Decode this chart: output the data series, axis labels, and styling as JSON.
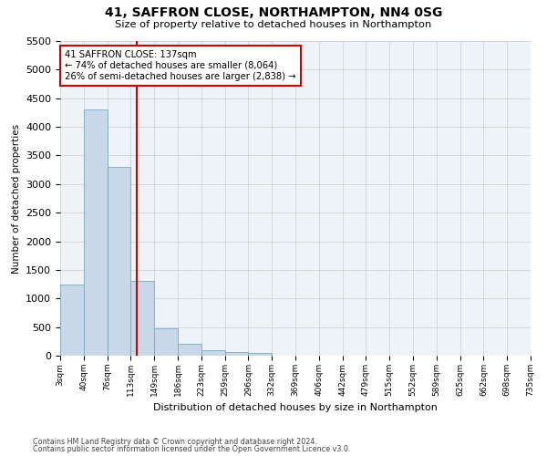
{
  "title": "41, SAFFRON CLOSE, NORTHAMPTON, NN4 0SG",
  "subtitle": "Size of property relative to detached houses in Northampton",
  "xlabel": "Distribution of detached houses by size in Northampton",
  "ylabel": "Number of detached properties",
  "footnote1": "Contains HM Land Registry data © Crown copyright and database right 2024.",
  "footnote2": "Contains public sector information licensed under the Open Government Licence v3.0.",
  "bar_color": "#c8d8e8",
  "bar_edge_color": "#7aaabf",
  "grid_color": "#cccccc",
  "bg_color": "#eef3f8",
  "annotation_box_color": "#cc0000",
  "vline_color": "#cc0000",
  "property_size_label": "137sqm",
  "property_bin_index": 3.27,
  "annotation_line1": "41 SAFFRON CLOSE: 137sqm",
  "annotation_line2": "← 74% of detached houses are smaller (8,064)",
  "annotation_line3": "26% of semi-detached houses are larger (2,838) →",
  "bin_labels": [
    "3sqm",
    "40sqm",
    "76sqm",
    "113sqm",
    "149sqm",
    "186sqm",
    "223sqm",
    "259sqm",
    "296sqm",
    "332sqm",
    "369sqm",
    "406sqm",
    "442sqm",
    "479sqm",
    "515sqm",
    "552sqm",
    "589sqm",
    "625sqm",
    "662sqm",
    "698sqm",
    "735sqm"
  ],
  "bar_heights": [
    1250,
    4300,
    3300,
    1300,
    475,
    200,
    100,
    60,
    40,
    0,
    0,
    0,
    0,
    0,
    0,
    0,
    0,
    0,
    0,
    0
  ],
  "ylim": [
    0,
    5500
  ],
  "yticks": [
    0,
    500,
    1000,
    1500,
    2000,
    2500,
    3000,
    3500,
    4000,
    4500,
    5000,
    5500
  ],
  "n_bins": 20
}
